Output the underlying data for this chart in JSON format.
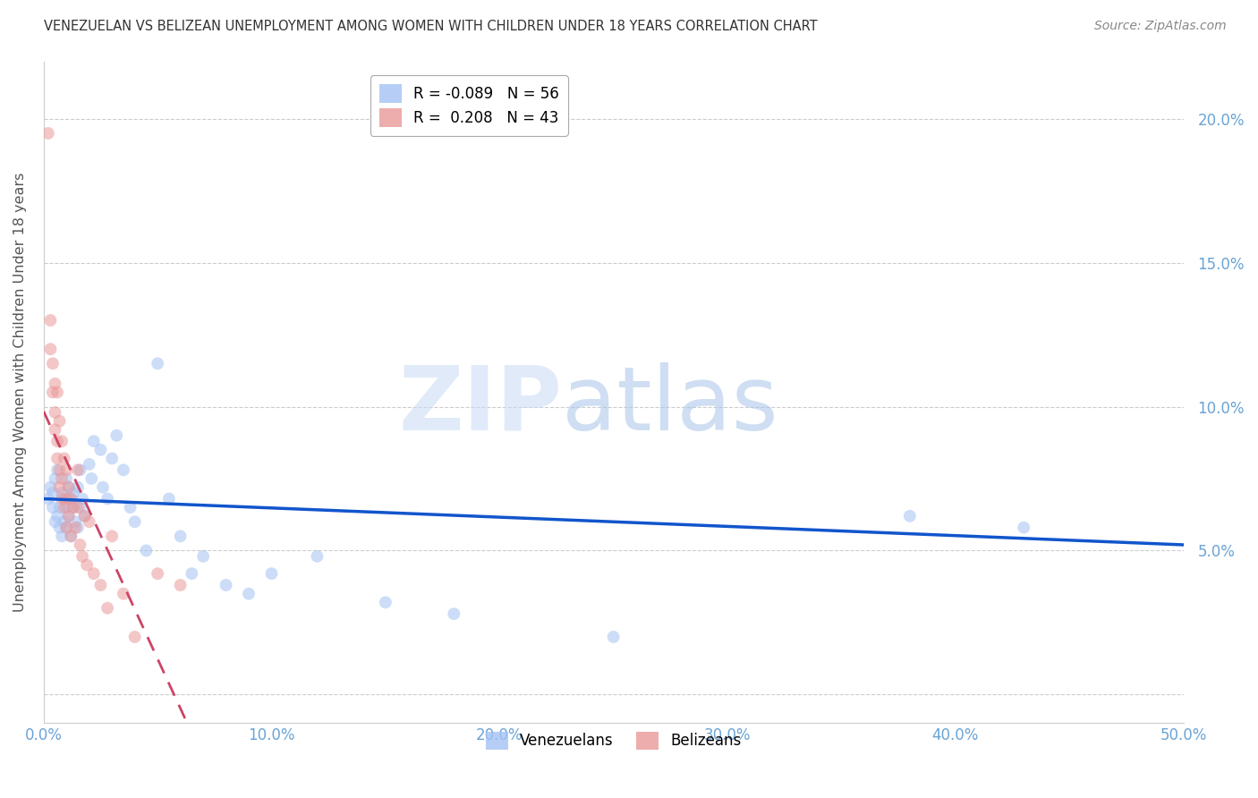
{
  "title": "VENEZUELAN VS BELIZEAN UNEMPLOYMENT AMONG WOMEN WITH CHILDREN UNDER 18 YEARS CORRELATION CHART",
  "source": "Source: ZipAtlas.com",
  "ylabel": "Unemployment Among Women with Children Under 18 years",
  "xlim": [
    0.0,
    0.5
  ],
  "ylim": [
    -0.01,
    0.22
  ],
  "yticks": [
    0.0,
    0.05,
    0.1,
    0.15,
    0.2
  ],
  "ytick_labels": [
    "",
    "5.0%",
    "10.0%",
    "15.0%",
    "20.0%"
  ],
  "xticks": [
    0.0,
    0.1,
    0.2,
    0.3,
    0.4,
    0.5
  ],
  "xtick_labels": [
    "0.0%",
    "10.0%",
    "20.0%",
    "30.0%",
    "40.0%",
    "50.0%"
  ],
  "venezuelan_color": "#a4c2f4",
  "belizean_color": "#ea9999",
  "trend_blue": "#1155cc",
  "trend_pink": "#cc4466",
  "R_venezuelan": -0.089,
  "N_venezuelan": 56,
  "R_belizean": 0.208,
  "N_belizean": 43,
  "venezuelan_x": [
    0.002,
    0.003,
    0.004,
    0.004,
    0.005,
    0.005,
    0.006,
    0.006,
    0.007,
    0.007,
    0.008,
    0.008,
    0.009,
    0.009,
    0.01,
    0.01,
    0.01,
    0.011,
    0.011,
    0.012,
    0.012,
    0.013,
    0.013,
    0.014,
    0.015,
    0.015,
    0.016,
    0.016,
    0.017,
    0.018,
    0.02,
    0.021,
    0.022,
    0.025,
    0.026,
    0.028,
    0.03,
    0.032,
    0.035,
    0.038,
    0.04,
    0.045,
    0.05,
    0.055,
    0.06,
    0.065,
    0.07,
    0.08,
    0.09,
    0.1,
    0.12,
    0.15,
    0.18,
    0.25,
    0.38,
    0.43
  ],
  "venezuelan_y": [
    0.068,
    0.072,
    0.065,
    0.07,
    0.06,
    0.075,
    0.062,
    0.078,
    0.058,
    0.065,
    0.07,
    0.055,
    0.068,
    0.06,
    0.075,
    0.065,
    0.058,
    0.072,
    0.062,
    0.068,
    0.055,
    0.07,
    0.065,
    0.06,
    0.072,
    0.058,
    0.065,
    0.078,
    0.068,
    0.062,
    0.08,
    0.075,
    0.088,
    0.085,
    0.072,
    0.068,
    0.082,
    0.09,
    0.078,
    0.065,
    0.06,
    0.05,
    0.115,
    0.068,
    0.055,
    0.042,
    0.048,
    0.038,
    0.035,
    0.042,
    0.048,
    0.032,
    0.028,
    0.02,
    0.062,
    0.058
  ],
  "belizean_x": [
    0.002,
    0.003,
    0.003,
    0.004,
    0.004,
    0.005,
    0.005,
    0.005,
    0.006,
    0.006,
    0.006,
    0.007,
    0.007,
    0.007,
    0.008,
    0.008,
    0.008,
    0.009,
    0.009,
    0.01,
    0.01,
    0.01,
    0.011,
    0.011,
    0.012,
    0.012,
    0.013,
    0.014,
    0.015,
    0.015,
    0.016,
    0.017,
    0.018,
    0.019,
    0.02,
    0.022,
    0.025,
    0.028,
    0.03,
    0.035,
    0.04,
    0.05,
    0.06
  ],
  "belizean_y": [
    0.195,
    0.13,
    0.12,
    0.115,
    0.105,
    0.108,
    0.098,
    0.092,
    0.105,
    0.088,
    0.082,
    0.095,
    0.078,
    0.072,
    0.088,
    0.075,
    0.068,
    0.082,
    0.065,
    0.078,
    0.068,
    0.058,
    0.072,
    0.062,
    0.068,
    0.055,
    0.065,
    0.058,
    0.078,
    0.065,
    0.052,
    0.048,
    0.062,
    0.045,
    0.06,
    0.042,
    0.038,
    0.03,
    0.055,
    0.035,
    0.02,
    0.042,
    0.038
  ],
  "watermark_zip": "ZIP",
  "watermark_atlas": "atlas",
  "marker_size": 100,
  "marker_alpha": 0.55,
  "title_color": "#333333",
  "axis_color": "#6aa3d5",
  "grid_color": "#cccccc",
  "source_color": "#888888"
}
